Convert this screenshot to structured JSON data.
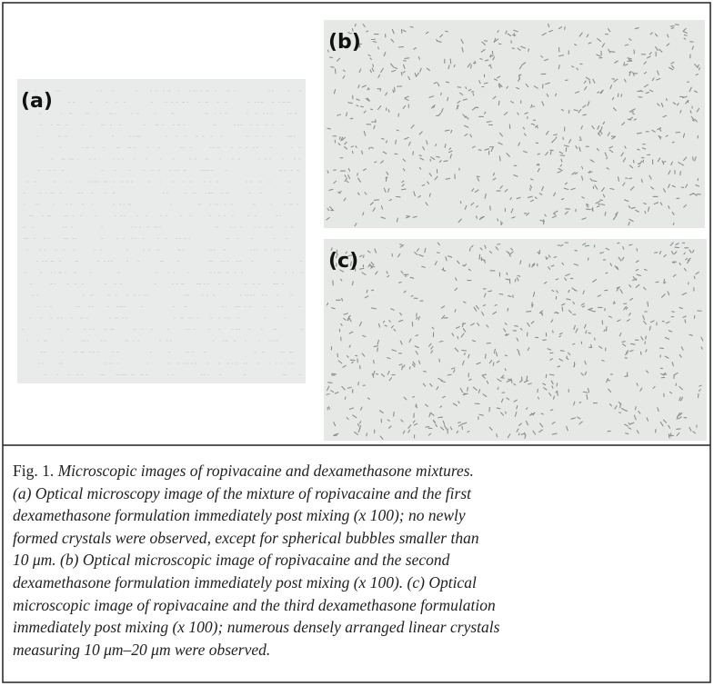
{
  "figure": {
    "panels": [
      {
        "label": "(a)"
      },
      {
        "label": "(b)"
      },
      {
        "label": "(c)"
      }
    ],
    "caption": {
      "label": "Fig. 1.",
      "lines": [
        "Microscopic images of ropivacaine and dexamethasone mixtures.",
        "(a) Optical microscopy image of the mixture of ropivacaine and the first",
        "dexamethasone formulation immediately post mixing (x 100); no newly",
        "formed crystals were observed, except for spherical bubbles smaller than",
        "10 μm. (b) Optical microscopic image of ropivacaine and the second",
        "dexamethasone formulation immediately post mixing (x 100). (c) Optical",
        "microscopic image of ropivacaine and the third dexamethasone formulation",
        "immediately post mixing (x 100); numerous densely arranged linear crystals",
        "measuring 10 μm–20 μm were observed."
      ]
    }
  }
}
